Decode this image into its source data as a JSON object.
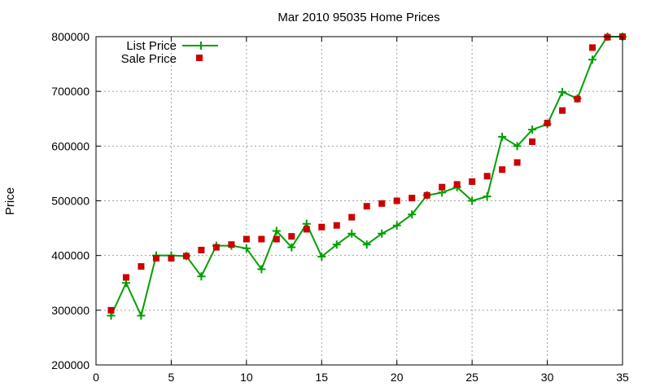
{
  "chart_data": {
    "type": "line",
    "title": "Mar 2010 95035 Home Prices",
    "xlabel": "",
    "ylabel": "Price",
    "xlim": [
      0,
      35
    ],
    "ylim": [
      200000,
      800000
    ],
    "xticks": [
      0,
      5,
      10,
      15,
      20,
      25,
      30,
      35
    ],
    "yticks": [
      200000,
      300000,
      400000,
      500000,
      600000,
      700000,
      800000
    ],
    "xtick_labels": [
      "0",
      "5",
      "10",
      "15",
      "20",
      "25",
      "30",
      "35"
    ],
    "ytick_labels": [
      "200000",
      "300000",
      "400000",
      "500000",
      "600000",
      "700000",
      "800000"
    ],
    "grid": true,
    "legend_position": "top-left",
    "series": [
      {
        "name": "List Price",
        "style": "line-with-plus-markers",
        "color": "#00a000",
        "x": [
          1,
          2,
          3,
          4,
          5,
          6,
          7,
          8,
          9,
          10,
          11,
          12,
          13,
          14,
          15,
          16,
          17,
          18,
          19,
          20,
          21,
          22,
          23,
          24,
          25,
          26,
          27,
          28,
          29,
          30,
          31,
          32,
          33,
          34,
          35
        ],
        "values": [
          290000,
          350000,
          290000,
          400000,
          400000,
          399000,
          362000,
          418000,
          418000,
          413000,
          375000,
          445000,
          415000,
          458000,
          398000,
          420000,
          440000,
          420000,
          440000,
          455000,
          475000,
          510000,
          515000,
          525000,
          500000,
          508000,
          617000,
          600000,
          630000,
          640000,
          699000,
          687000,
          758000,
          800000,
          800000
        ]
      },
      {
        "name": "Sale Price",
        "style": "square-markers",
        "color": "#cc0000",
        "x": [
          1,
          2,
          3,
          4,
          5,
          6,
          7,
          8,
          9,
          10,
          11,
          12,
          13,
          14,
          15,
          16,
          17,
          18,
          19,
          20,
          21,
          22,
          23,
          24,
          25,
          26,
          27,
          28,
          29,
          30,
          31,
          32,
          33,
          34,
          35
        ],
        "values": [
          300000,
          360000,
          380000,
          395000,
          395000,
          399000,
          410000,
          415000,
          420000,
          430000,
          430000,
          430000,
          435000,
          448000,
          452000,
          455000,
          470000,
          490000,
          495000,
          500000,
          505000,
          510000,
          525000,
          530000,
          535000,
          545000,
          557000,
          570000,
          608000,
          642000,
          665000,
          686000,
          780000,
          799000,
          800000
        ]
      }
    ]
  }
}
